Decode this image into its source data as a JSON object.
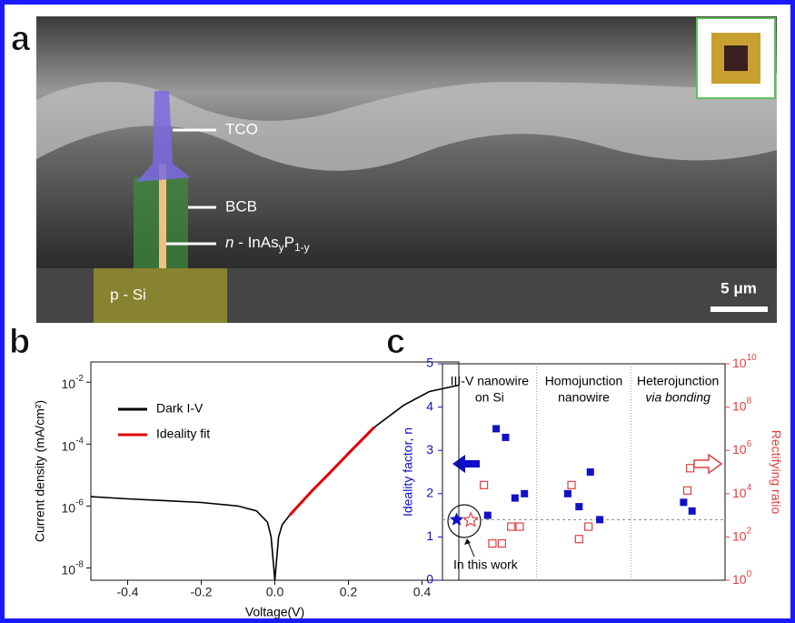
{
  "panel_labels": [
    "a",
    "b",
    "c"
  ],
  "panel_a": {
    "labels": [
      "TCO",
      "BCB",
      "p - Si"
    ],
    "nanowire_label": [
      "n",
      " - InAs",
      "y",
      "P",
      "1-y"
    ],
    "scale_bar": "5 μm"
  },
  "chart_data": [
    {
      "type": "line",
      "xlabel": "Voltage(V)",
      "ylabel": "Current density (mA/cm²)",
      "x": [
        -0.5,
        -0.4,
        -0.3,
        -0.2,
        -0.1,
        -0.05,
        -0.02,
        -0.01,
        0,
        0.01,
        0.02,
        0.04,
        0.1,
        0.15,
        0.2,
        0.27,
        0.35,
        0.42,
        0.5
      ],
      "series": [
        {
          "name": "Dark I-V",
          "color": "#000000",
          "values": [
            2e-06,
            1.7e-06,
            1.5e-06,
            1.3e-06,
            1e-06,
            7e-07,
            3e-07,
            1e-07,
            4e-09,
            1e-07,
            2.5e-07,
            5e-07,
            3e-06,
            1.2e-05,
            5e-05,
            0.00035,
            0.0018,
            0.005,
            0.008
          ]
        },
        {
          "name": "Ideality fit",
          "color": "#e00000",
          "values": [
            null,
            null,
            null,
            null,
            null,
            null,
            null,
            null,
            null,
            null,
            null,
            5e-07,
            3e-06,
            1.2e-05,
            5e-05,
            0.00035,
            null,
            null,
            null
          ]
        }
      ],
      "xlim": [
        -0.5,
        0.5
      ],
      "xticks": [
        -0.4,
        -0.2,
        {
          "value": 0,
          "label": "0.0"
        },
        0.2,
        0.4
      ],
      "ylim": [
        4e-09,
        0.045
      ],
      "log_y": true,
      "yticks": [
        {
          "value": 0.01,
          "label": "10",
          "exponent": "-2"
        },
        {
          "value": 0.0001,
          "label": "10",
          "exponent": "-4"
        },
        {
          "value": 1e-06,
          "label": "10",
          "exponent": "-6"
        },
        {
          "value": 1e-08,
          "label": "10",
          "exponent": "-8"
        }
      ],
      "legend": "upper-left"
    },
    {
      "type": "scatter",
      "ylabel": "Ideality factor, n",
      "y2label": "Rectifying ratio",
      "regions": [
        [
          "III-V nanowire",
          "on Si"
        ],
        [
          "Homojunction",
          "nanowire"
        ],
        [
          "Heterojunction",
          "via bonding"
        ]
      ],
      "dividers": [
        1,
        2
      ],
      "reference_line": 1.4,
      "annotation": "In this work",
      "xlim": [
        0,
        3
      ],
      "ylim": [
        0,
        5
      ],
      "yticks": [
        0,
        1,
        2,
        3,
        4,
        5
      ],
      "y2lim": [
        1,
        10000000000.0
      ],
      "log_y2": true,
      "y2ticks": [
        {
          "value": 1,
          "label": "10",
          "exponent": "0"
        },
        {
          "value": 100,
          "label": "10",
          "exponent": "2"
        },
        {
          "value": 10000,
          "label": "10",
          "exponent": "4"
        },
        {
          "value": 1000000,
          "label": "10",
          "exponent": "6"
        },
        {
          "value": 100000000,
          "label": "10",
          "exponent": "8"
        },
        {
          "value": 10000000000,
          "label": "10",
          "exponent": "10"
        }
      ],
      "series": [
        {
          "color": "#1010c8",
          "marker": "filled-square",
          "x": [
            0.48,
            0.57,
            0.67,
            0.77,
            0.87,
            1.33,
            1.45,
            1.57,
            1.67,
            2.56,
            2.65
          ],
          "values": [
            1.5,
            3.5,
            3.3,
            1.9,
            2.0,
            2.0,
            1.7,
            2.5,
            1.4,
            1.8,
            1.6
          ]
        },
        {
          "color": "#e04040",
          "marker": "open-square",
          "axis": "y2",
          "x": [
            0.44,
            0.53,
            0.63,
            0.73,
            0.82,
            1.37,
            1.45,
            1.55,
            2.6,
            2.63
          ],
          "values": [
            25000,
            50,
            50,
            300,
            300,
            25000,
            80,
            300,
            14000,
            150000
          ]
        },
        {
          "color": "#1010c8",
          "marker": "filled-star",
          "x": [
            0.15
          ],
          "values": [
            1.4
          ]
        },
        {
          "color": "#e04040",
          "marker": "open-star",
          "axis": "y2",
          "x": [
            0.3
          ],
          "values": [
            600
          ]
        }
      ]
    }
  ]
}
